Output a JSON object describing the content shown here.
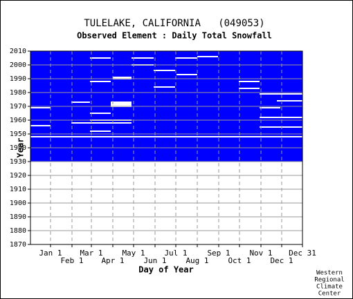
{
  "chart_data": {
    "type": "coverage",
    "title": "TULELAKE, CALIFORNIA   (049053)",
    "subtitle": "Observed Element : Daily Total Snowfall",
    "x_label": "Day of Year",
    "y_label": "Year",
    "credit": [
      "Western",
      "Regional",
      "Climate",
      "Center"
    ],
    "color": "#0000ff",
    "xlim": [
      -29,
      364
    ],
    "ylim": [
      1870,
      2010
    ],
    "yticks": [
      1870,
      1880,
      1890,
      1900,
      1910,
      1920,
      1930,
      1940,
      1950,
      1960,
      1970,
      1980,
      1990,
      2000,
      2010
    ],
    "xticks": [
      {
        "value": 0,
        "label": "Jan 1"
      },
      {
        "value": 31,
        "label": "Feb 1"
      },
      {
        "value": 59,
        "label": "Mar 1"
      },
      {
        "value": 90,
        "label": "Apr 1"
      },
      {
        "value": 120,
        "label": "May 1"
      },
      {
        "value": 151,
        "label": "Jun 1"
      },
      {
        "value": 181,
        "label": "Jul 1"
      },
      {
        "value": 212,
        "label": "Aug 1"
      },
      {
        "value": 243,
        "label": "Sep 1"
      },
      {
        "value": 273,
        "label": "Oct 1"
      },
      {
        "value": 304,
        "label": "Nov 1"
      },
      {
        "value": 334,
        "label": "Dec 1"
      },
      {
        "value": 364,
        "label": "Dec 31"
      }
    ],
    "coverage_years": [
      1930,
      2010
    ],
    "missing": [
      [
        1948,
        -29,
        364
      ],
      [
        2005,
        57,
        87
      ],
      [
        2005,
        117,
        149
      ],
      [
        2005,
        180,
        212
      ],
      [
        2006,
        212,
        242
      ],
      [
        2000,
        117,
        149
      ],
      [
        1996,
        149,
        180
      ],
      [
        1993,
        182,
        212
      ],
      [
        1988,
        57,
        87
      ],
      [
        1991,
        90,
        117
      ],
      [
        1990,
        90,
        117
      ],
      [
        1984,
        149,
        180
      ],
      [
        1988,
        272,
        302
      ],
      [
        1983,
        272,
        302
      ],
      [
        1979,
        302,
        364
      ],
      [
        1974,
        327,
        364
      ],
      [
        1969,
        302,
        332
      ],
      [
        1969,
        -29,
        0
      ],
      [
        1973,
        30,
        57
      ],
      [
        1973,
        87,
        117
      ],
      [
        1972,
        87,
        117
      ],
      [
        1971,
        87,
        117
      ],
      [
        1970,
        87,
        117
      ],
      [
        1965,
        57,
        87
      ],
      [
        1960,
        57,
        117
      ],
      [
        1958,
        30,
        117
      ],
      [
        1956,
        -29,
        0
      ],
      [
        1952,
        57,
        87
      ],
      [
        1962,
        302,
        364
      ],
      [
        1955,
        302,
        364
      ]
    ]
  }
}
